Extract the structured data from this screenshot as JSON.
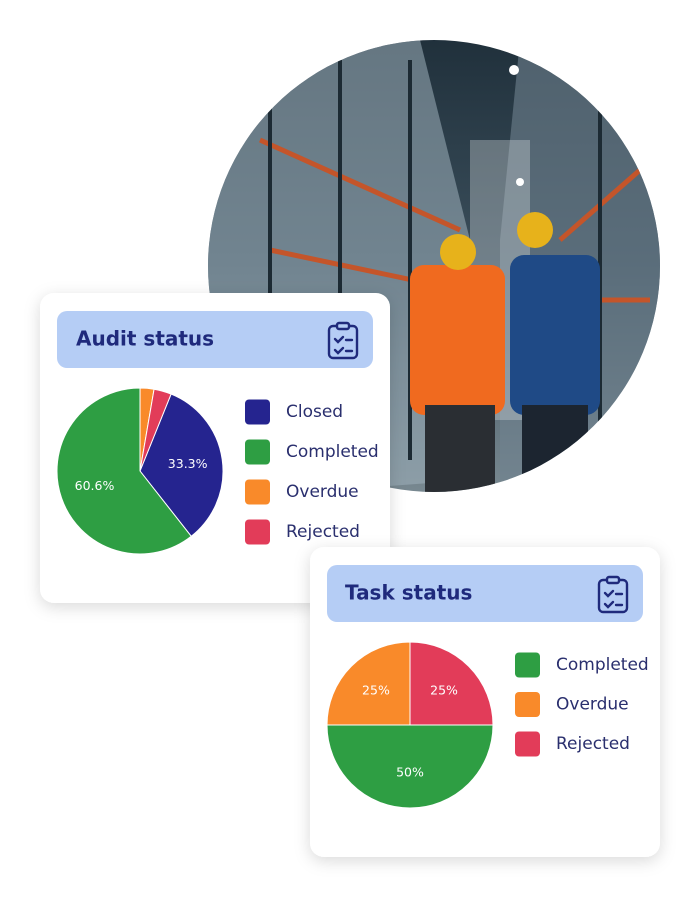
{
  "chart_data": [
    {
      "type": "pie",
      "title": "Audit status",
      "categories": [
        "Closed",
        "Completed",
        "Overdue",
        "Rejected"
      ],
      "values": [
        33.3,
        60.6,
        2.7,
        3.4
      ],
      "value_labels": [
        "33.3%",
        "60.6%",
        null,
        null
      ],
      "colors": [
        "#25248f",
        "#2e9e43",
        "#f98a2a",
        "#e23c59"
      ]
    },
    {
      "type": "pie",
      "title": "Task status",
      "categories": [
        "Completed",
        "Overdue",
        "Rejected"
      ],
      "values": [
        50,
        25,
        25
      ],
      "value_labels": [
        "50%",
        "25%",
        "25%"
      ],
      "colors": [
        "#2e9e43",
        "#f98a2a",
        "#e23c59"
      ]
    }
  ]
}
